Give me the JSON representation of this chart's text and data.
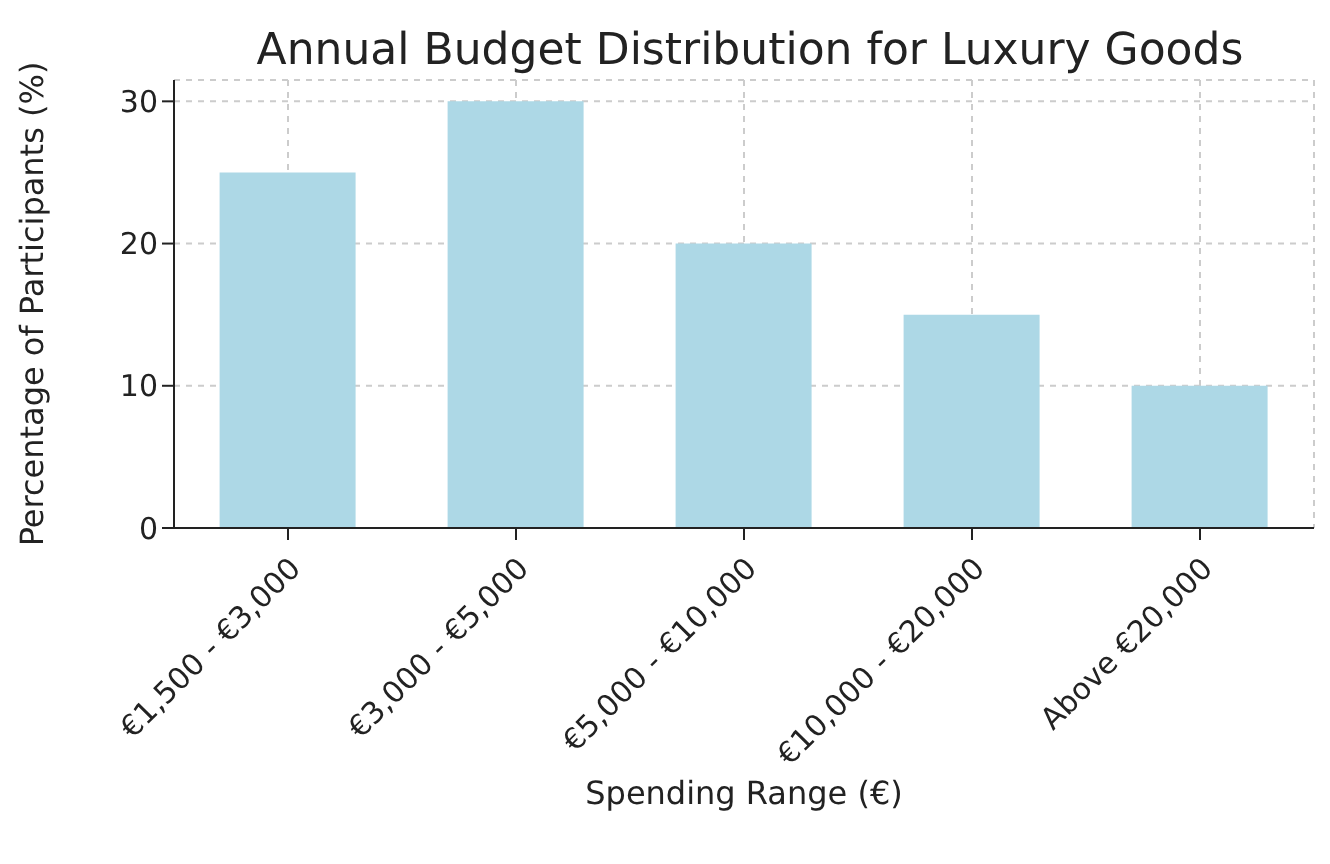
{
  "chart_data": {
    "type": "bar",
    "title": "Annual Budget Distribution for Luxury Goods",
    "xlabel": "Spending Range (€)",
    "ylabel": "Percentage of Participants (%)",
    "categories": [
      "€1,500 - €3,000",
      "€3,000 - €5,000",
      "€5,000 - €10,000",
      "€10,000 - €20,000",
      "Above €20,000"
    ],
    "values": [
      25,
      30,
      20,
      15,
      10
    ],
    "color": "#add8e6",
    "ylim": [
      0,
      31.5
    ],
    "yticks": [
      0,
      10,
      20,
      30
    ],
    "grid": true
  }
}
